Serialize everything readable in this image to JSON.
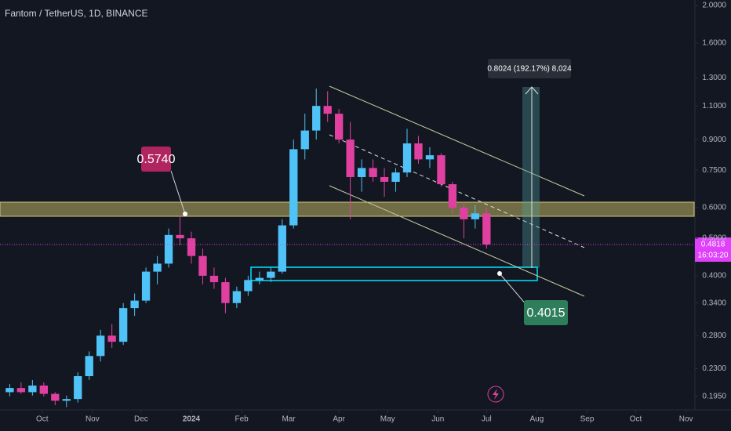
{
  "chart_data": {
    "type": "candlestick",
    "title": "Fantom / TetherUS, 1D, BINANCE",
    "log_scale": true,
    "up_color": "#4fc3f7",
    "down_color": "#e040a0",
    "xlim": [
      "2023-09-05",
      "2024-11-06"
    ],
    "xticks": [
      {
        "value": "2023-10-01",
        "label": "Oct"
      },
      {
        "value": "2023-11-01",
        "label": "Nov"
      },
      {
        "value": "2023-12-01",
        "label": "Dec"
      },
      {
        "value": "2024-01-01",
        "label": "2024"
      },
      {
        "value": "2024-02-01",
        "label": "Feb"
      },
      {
        "value": "2024-03-01",
        "label": "Mar"
      },
      {
        "value": "2024-04-01",
        "label": "Apr"
      },
      {
        "value": "2024-05-01",
        "label": "May"
      },
      {
        "value": "2024-06-01",
        "label": "Jun"
      },
      {
        "value": "2024-07-01",
        "label": "Jul"
      },
      {
        "value": "2024-08-01",
        "label": "Aug"
      },
      {
        "value": "2024-09-01",
        "label": "Sep"
      },
      {
        "value": "2024-10-01",
        "label": "Oct"
      },
      {
        "value": "2024-11-01",
        "label": "Nov"
      }
    ],
    "ylim": [
      0.18,
      2.067
    ],
    "yticks": [
      {
        "value": 2,
        "label": "2.0000"
      },
      {
        "value": 1.6,
        "label": "1.6000"
      },
      {
        "value": 1.3,
        "label": "1.3000"
      },
      {
        "value": 1.1,
        "label": "1.1000"
      },
      {
        "value": 0.9,
        "label": "0.9000"
      },
      {
        "value": 0.75,
        "label": "0.7500"
      },
      {
        "value": 0.6,
        "label": "0.6000"
      },
      {
        "value": 0.5,
        "label": "0.5000"
      },
      {
        "value": 0.4,
        "label": "0.4000"
      },
      {
        "value": 0.34,
        "label": "0.3400"
      },
      {
        "value": 0.28,
        "label": "0.2800"
      },
      {
        "value": 0.23,
        "label": "0.2300"
      },
      {
        "value": 0.195,
        "label": "0.1950"
      }
    ],
    "x": [
      "2023-09-11",
      "2023-09-18",
      "2023-09-25",
      "2023-10-02",
      "2023-10-09",
      "2023-10-16",
      "2023-10-23",
      "2023-10-30",
      "2023-11-06",
      "2023-11-13",
      "2023-11-20",
      "2023-11-27",
      "2023-12-04",
      "2023-12-11",
      "2023-12-18",
      "2023-12-25",
      "2024-01-01",
      "2024-01-08",
      "2024-01-15",
      "2024-01-22",
      "2024-01-29",
      "2024-02-05",
      "2024-02-12",
      "2024-02-19",
      "2024-02-26",
      "2024-03-04",
      "2024-03-11",
      "2024-03-18",
      "2024-03-25",
      "2024-04-01",
      "2024-04-08",
      "2024-04-15",
      "2024-04-22",
      "2024-04-29",
      "2024-05-06",
      "2024-05-13",
      "2024-05-20",
      "2024-05-27",
      "2024-06-03",
      "2024-06-10",
      "2024-06-17",
      "2024-06-24",
      "2024-07-01"
    ],
    "open": [
      0.2,
      0.205,
      0.2,
      0.208,
      0.198,
      0.19,
      0.192,
      0.22,
      0.248,
      0.28,
      0.27,
      0.33,
      0.345,
      0.41,
      0.43,
      0.51,
      0.5,
      0.45,
      0.4,
      0.385,
      0.34,
      0.365,
      0.39,
      0.395,
      0.41,
      0.54,
      0.85,
      0.95,
      1.1,
      1.05,
      0.9,
      0.72,
      0.76,
      0.72,
      0.7,
      0.74,
      0.88,
      0.8,
      0.82,
      0.69,
      0.6,
      0.56,
      0.58
    ],
    "high": [
      0.21,
      0.212,
      0.215,
      0.212,
      0.2,
      0.196,
      0.225,
      0.255,
      0.29,
      0.3,
      0.34,
      0.36,
      0.42,
      0.45,
      0.53,
      0.574,
      0.52,
      0.47,
      0.42,
      0.395,
      0.375,
      0.4,
      0.41,
      0.42,
      0.56,
      0.9,
      1.05,
      1.22,
      1.2,
      1.08,
      1.0,
      0.8,
      0.8,
      0.76,
      0.76,
      0.96,
      0.92,
      0.86,
      0.83,
      0.7,
      0.62,
      0.61,
      0.6
    ],
    "low": [
      0.195,
      0.198,
      0.196,
      0.195,
      0.185,
      0.183,
      0.188,
      0.215,
      0.24,
      0.26,
      0.265,
      0.315,
      0.34,
      0.38,
      0.42,
      0.48,
      0.43,
      0.38,
      0.37,
      0.32,
      0.33,
      0.355,
      0.38,
      0.385,
      0.405,
      0.53,
      0.8,
      0.9,
      1.0,
      0.88,
      0.56,
      0.66,
      0.7,
      0.64,
      0.66,
      0.72,
      0.78,
      0.76,
      0.68,
      0.58,
      0.5,
      0.53,
      0.47
    ],
    "close": [
      0.205,
      0.2,
      0.208,
      0.198,
      0.19,
      0.192,
      0.22,
      0.248,
      0.28,
      0.27,
      0.33,
      0.345,
      0.41,
      0.43,
      0.51,
      0.5,
      0.45,
      0.4,
      0.385,
      0.34,
      0.365,
      0.39,
      0.395,
      0.41,
      0.54,
      0.85,
      0.95,
      1.1,
      1.05,
      0.9,
      0.72,
      0.76,
      0.72,
      0.7,
      0.74,
      0.88,
      0.8,
      0.82,
      0.69,
      0.6,
      0.56,
      0.58,
      0.4818
    ],
    "last_price": {
      "value": 0.4818,
      "label": "0.4818",
      "countdown": "16:03:20"
    },
    "annotations": [
      {
        "text": "0.5740",
        "value": 0.574
      },
      {
        "text": "0.4015",
        "value": 0.4015
      },
      {
        "text": "0.8024 (192.17%) 8,024"
      }
    ]
  }
}
